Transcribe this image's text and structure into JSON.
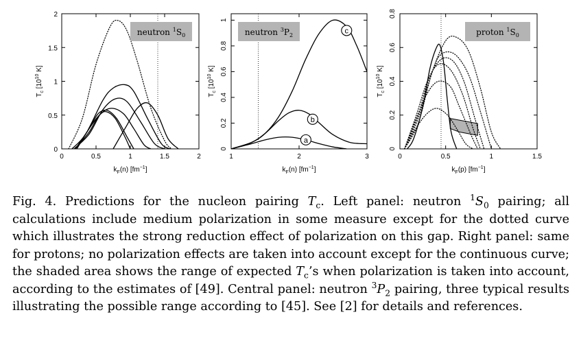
{
  "chart_data": [
    {
      "type": "line",
      "id": "left",
      "label_box": {
        "particle": "neutron",
        "state_sup": "1",
        "state_letter": "S",
        "state_sub": "0"
      },
      "xlabel": {
        "main": "k",
        "sub": "F",
        "arg": "(n)",
        "unit_pre": "[fm",
        "unit_sup": "−1",
        "unit_post": "]"
      },
      "ylabel": {
        "main": "T",
        "sub": "c",
        "unit_pre": "[10",
        "unit_sup": "10",
        "unit_post": " K]"
      },
      "xlim": [
        0,
        2
      ],
      "ylim": [
        0,
        2
      ],
      "xticks": [
        0,
        0.5,
        1,
        1.5,
        2
      ],
      "xticklabels": [
        "0",
        "0.5",
        "1",
        "1.5",
        "2"
      ],
      "yticks": [
        0,
        0.5,
        1,
        1.5,
        2
      ],
      "yticklabels": [
        "0",
        "0.5",
        "1",
        "1.5",
        "2"
      ],
      "vline": 1.4,
      "series": [
        {
          "name": "no-polarization",
          "style": "dotted",
          "x": [
            0.1,
            0.3,
            0.5,
            0.7,
            0.82,
            0.95,
            1.1,
            1.3,
            1.5,
            1.6
          ],
          "y": [
            0,
            0.45,
            1.25,
            1.8,
            1.9,
            1.75,
            1.3,
            0.6,
            0.12,
            0
          ]
        },
        {
          "name": "curve-1",
          "style": "solid",
          "x": [
            0.15,
            0.35,
            0.6,
            0.75,
            0.92,
            1.05,
            1.25,
            1.45,
            1.58
          ],
          "y": [
            0,
            0.22,
            0.72,
            0.9,
            0.95,
            0.85,
            0.45,
            0.08,
            0
          ]
        },
        {
          "name": "curve-2",
          "style": "solid",
          "x": [
            0.18,
            0.4,
            0.6,
            0.78,
            0.95,
            1.15,
            1.35,
            1.5
          ],
          "y": [
            0,
            0.22,
            0.58,
            0.74,
            0.7,
            0.4,
            0.08,
            0
          ]
        },
        {
          "name": "curve-3",
          "style": "solid",
          "x": [
            0.2,
            0.4,
            0.55,
            0.72,
            0.9,
            1.05,
            1.2,
            1.3
          ],
          "y": [
            0,
            0.25,
            0.5,
            0.6,
            0.52,
            0.3,
            0.06,
            0
          ]
        },
        {
          "name": "curve-4",
          "style": "solid",
          "x": [
            0.2,
            0.4,
            0.53,
            0.66,
            0.8,
            0.95,
            1.05
          ],
          "y": [
            0,
            0.3,
            0.52,
            0.57,
            0.45,
            0.18,
            0
          ]
        },
        {
          "name": "curve-5",
          "style": "solid",
          "x": [
            0.22,
            0.4,
            0.55,
            0.65,
            0.78,
            0.92,
            1.0
          ],
          "y": [
            0,
            0.3,
            0.5,
            0.55,
            0.45,
            0.18,
            0
          ]
        },
        {
          "name": "curve-6",
          "style": "solid",
          "x": [
            0.75,
            0.95,
            1.1,
            1.25,
            1.4,
            1.55,
            1.7
          ],
          "y": [
            0,
            0.35,
            0.6,
            0.68,
            0.5,
            0.15,
            0
          ]
        }
      ]
    },
    {
      "type": "line",
      "id": "center",
      "label_box": {
        "particle": "neutron",
        "state_sup": "3",
        "state_letter": "P",
        "state_sub": "2"
      },
      "xlabel": {
        "main": "k",
        "sub": "F",
        "arg": "(n)",
        "unit_pre": "[fm",
        "unit_sup": "−1",
        "unit_post": "]"
      },
      "ylabel": {
        "main": "T",
        "sub": "c",
        "unit_pre": "[10",
        "unit_sup": "10",
        "unit_post": " K]"
      },
      "xlim": [
        1,
        3
      ],
      "ylim": [
        0,
        1.05
      ],
      "xticks": [
        1,
        2,
        3
      ],
      "xticklabels": [
        "1",
        "2",
        "3"
      ],
      "yticks": [
        0,
        0.2,
        0.4,
        0.6,
        0.8,
        1
      ],
      "yticklabels": [
        "0",
        "0.2",
        "0.4",
        "0.6",
        "0.8",
        "1"
      ],
      "vline": 1.4,
      "series": [
        {
          "name": "a",
          "style": "solid",
          "marker": "a",
          "marker_x": 2.1,
          "marker_y": 0.07,
          "x": [
            1,
            1.3,
            1.5,
            1.7,
            1.9,
            2.1,
            2.3,
            2.5,
            2.7
          ],
          "y": [
            0,
            0.04,
            0.07,
            0.09,
            0.09,
            0.07,
            0.04,
            0.015,
            0
          ]
        },
        {
          "name": "b",
          "style": "solid",
          "marker": "b",
          "marker_x": 2.2,
          "marker_y": 0.23,
          "x": [
            1,
            1.3,
            1.5,
            1.7,
            1.85,
            2.0,
            2.15,
            2.3,
            2.5,
            2.75,
            3.0
          ],
          "y": [
            0,
            0.05,
            0.12,
            0.22,
            0.28,
            0.3,
            0.27,
            0.2,
            0.11,
            0.05,
            0.04
          ]
        },
        {
          "name": "c",
          "style": "solid",
          "marker": "c",
          "marker_x": 2.7,
          "marker_y": 0.92,
          "x": [
            1,
            1.3,
            1.5,
            1.7,
            1.9,
            2.1,
            2.3,
            2.5,
            2.7,
            2.85,
            3.0
          ],
          "y": [
            0,
            0.05,
            0.12,
            0.25,
            0.45,
            0.7,
            0.9,
            1.0,
            0.95,
            0.8,
            0.6
          ]
        }
      ]
    },
    {
      "type": "line",
      "id": "right",
      "label_box": {
        "particle": "proton",
        "state_sup": "1",
        "state_letter": "S",
        "state_sub": "0"
      },
      "xlabel": {
        "main": "k",
        "sub": "F",
        "arg": "(p)",
        "unit_pre": "[fm",
        "unit_sup": "−1",
        "unit_post": "]"
      },
      "ylabel": {
        "main": "T",
        "sub": "c",
        "unit_pre": "[10",
        "unit_sup": "10",
        "unit_post": " K]"
      },
      "xlim": [
        0,
        1.5
      ],
      "ylim": [
        0,
        0.8
      ],
      "xticks": [
        0,
        0.5,
        1,
        1.5
      ],
      "xticklabels": [
        "0",
        "0.5",
        "1",
        "1.5"
      ],
      "yticks": [
        0,
        0.2,
        0.4,
        0.6,
        0.8
      ],
      "yticklabels": [
        "0",
        "0.2",
        "0.4",
        "0.6",
        "0.8"
      ],
      "vline": 0.45,
      "shaded": {
        "top": [
          [
            0.55,
            0.18
          ],
          [
            0.65,
            0.17
          ],
          [
            0.75,
            0.16
          ],
          [
            0.85,
            0.15
          ]
        ],
        "bottom": [
          [
            0.85,
            0.08
          ],
          [
            0.75,
            0.09
          ],
          [
            0.65,
            0.1
          ],
          [
            0.55,
            0.12
          ]
        ]
      },
      "series": [
        {
          "name": "with-polarization",
          "style": "solid",
          "x": [
            0.08,
            0.15,
            0.25,
            0.33,
            0.4,
            0.44,
            0.48,
            0.52,
            0.56,
            0.62
          ],
          "y": [
            0,
            0.06,
            0.25,
            0.48,
            0.6,
            0.61,
            0.5,
            0.28,
            0.1,
            0
          ]
        },
        {
          "name": "dotted-1",
          "style": "dotted",
          "x": [
            0.05,
            0.2,
            0.35,
            0.5,
            0.62,
            0.75,
            0.88,
            1.0,
            1.1
          ],
          "y": [
            0,
            0.15,
            0.45,
            0.64,
            0.66,
            0.58,
            0.36,
            0.1,
            0
          ]
        },
        {
          "name": "dotted-2",
          "style": "dotted",
          "x": [
            0.05,
            0.2,
            0.35,
            0.45,
            0.6,
            0.75,
            0.88,
            1.0
          ],
          "y": [
            0,
            0.18,
            0.45,
            0.56,
            0.56,
            0.44,
            0.22,
            0
          ]
        },
        {
          "name": "dotted-3",
          "style": "dotted",
          "x": [
            0.05,
            0.2,
            0.32,
            0.45,
            0.58,
            0.7,
            0.82,
            0.92
          ],
          "y": [
            0,
            0.2,
            0.42,
            0.53,
            0.52,
            0.4,
            0.18,
            0
          ]
        },
        {
          "name": "dotted-4",
          "style": "dotted",
          "x": [
            0.05,
            0.18,
            0.3,
            0.42,
            0.55,
            0.68,
            0.8,
            0.88
          ],
          "y": [
            0,
            0.2,
            0.4,
            0.5,
            0.47,
            0.33,
            0.12,
            0
          ]
        },
        {
          "name": "dotted-5",
          "style": "dotted",
          "x": [
            0.05,
            0.18,
            0.3,
            0.42,
            0.55,
            0.65,
            0.78,
            0.85
          ],
          "y": [
            0,
            0.18,
            0.33,
            0.4,
            0.37,
            0.25,
            0.08,
            0
          ]
        },
        {
          "name": "dotted-6",
          "style": "dotted",
          "x": [
            0.05,
            0.15,
            0.28,
            0.4,
            0.52,
            0.62,
            0.72,
            0.8
          ],
          "y": [
            0,
            0.1,
            0.2,
            0.24,
            0.2,
            0.12,
            0.03,
            0
          ]
        }
      ]
    }
  ],
  "caption": {
    "fig_prefix": "Fig. 4.",
    "p1": " Predictions for the nucleon pairing ",
    "tc_T": "T",
    "tc_sub": "c",
    "p2": ". Left panel: neutron ",
    "sup1": "1",
    "S": "S",
    "sub0": "0",
    "p3": " pairing; all calculations include medium polarization in some measure except for the dotted curve which illustrates the strong reduction effect of polarization on this gap. Right panel: same for protons; no polarization effects are taken into account except for the continuous curve; the shaded area shows the range of expected ",
    "tc2_T": "T",
    "tc2_sub": "c",
    "p4": "’s when polarization is taken into account, according to the estimates of [49]. Central panel: neutron ",
    "sup3": "3",
    "P": "P",
    "sub2": "2",
    "p5": " pairing, three typical results illustrating the possible range according to [45]. See [2] for details and references."
  }
}
